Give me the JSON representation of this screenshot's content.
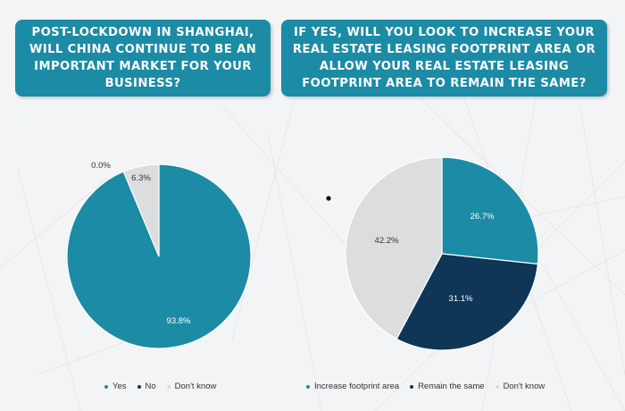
{
  "banners": {
    "left": "Post-lockdown in Shanghai,\nwill China continue to be an\nimportant market for your\nbusiness?",
    "right": "If yes, will you look to increase your\nreal estate leasing footprint area or\nallow your real estate leasing\nfootprint area to remain the same?"
  },
  "colors": {
    "teal": "#1c8ba5",
    "navy": "#0f3557",
    "light_gray": "#dcdddf",
    "banner": "#1c8ba5"
  },
  "chart_data": [
    {
      "type": "pie",
      "title": "Post-lockdown in Shanghai, will China continue to be an important market for your business?",
      "slices": [
        {
          "label": "Yes",
          "value": 93.8,
          "display": "93.8%",
          "color": "#1c8ba5"
        },
        {
          "label": "No",
          "value": 0.0,
          "display": "0.0%",
          "color": "#0f3557"
        },
        {
          "label": "Don't know",
          "value": 6.3,
          "display": "6.3%",
          "color": "#dcdddf"
        }
      ],
      "legend": [
        "Yes",
        "No",
        "Don't know"
      ],
      "legend_position": "bottom"
    },
    {
      "type": "pie",
      "title": "If yes, will you look to increase your real estate leasing footprint area or allow your real estate leasing footprint area to remain the same?",
      "slices": [
        {
          "label": "Increase footprint area",
          "value": 26.7,
          "display": "26.7%",
          "color": "#1c8ba5"
        },
        {
          "label": "Remain the same",
          "value": 31.1,
          "display": "31.1%",
          "color": "#0f3557"
        },
        {
          "label": "Don't know",
          "value": 42.2,
          "display": "42.2%",
          "color": "#dcdddf"
        }
      ],
      "legend": [
        "Increase footprint area",
        "Remain the same",
        "Don't know"
      ],
      "legend_position": "bottom"
    }
  ]
}
